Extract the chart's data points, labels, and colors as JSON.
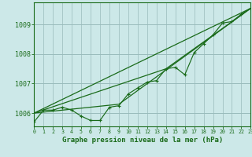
{
  "background_color": "#cce8e8",
  "plot_bg_color": "#cce8e8",
  "grid_color": "#99bbbb",
  "line_color": "#1a6b1a",
  "title": "Graphe pression niveau de la mer (hPa)",
  "ylabel_ticks": [
    1006,
    1007,
    1008,
    1009
  ],
  "xticks": [
    0,
    1,
    2,
    3,
    4,
    5,
    6,
    7,
    8,
    9,
    10,
    11,
    12,
    13,
    14,
    15,
    16,
    17,
    18,
    19,
    20,
    21,
    22,
    23
  ],
  "xlim": [
    0,
    23
  ],
  "ylim": [
    1005.55,
    1009.75
  ],
  "main_x": [
    0,
    1,
    2,
    3,
    4,
    5,
    6,
    7,
    8,
    9,
    10,
    11,
    12,
    13,
    14,
    15,
    16,
    17,
    18,
    19,
    20,
    21,
    22,
    23
  ],
  "main_y": [
    1005.7,
    1006.1,
    1006.1,
    1006.2,
    1006.1,
    1005.9,
    1005.75,
    1005.75,
    1006.2,
    1006.25,
    1006.65,
    1006.85,
    1007.05,
    1007.1,
    1007.5,
    1007.55,
    1007.3,
    1008.05,
    1008.35,
    1008.65,
    1009.05,
    1009.1,
    1009.35,
    1009.55
  ],
  "line1_x": [
    0,
    23
  ],
  "line1_y": [
    1006.0,
    1009.55
  ],
  "line2_x": [
    0,
    23
  ],
  "line2_y": [
    1006.0,
    1009.55
  ],
  "line3_x": [
    0,
    23
  ],
  "line3_y": [
    1006.0,
    1009.55
  ],
  "straight_lines": [
    {
      "x": [
        0,
        23
      ],
      "y": [
        1006.0,
        1009.55
      ]
    },
    {
      "x": [
        0,
        14,
        23
      ],
      "y": [
        1006.0,
        1007.5,
        1009.55
      ]
    },
    {
      "x": [
        0,
        9,
        23
      ],
      "y": [
        1006.0,
        1006.3,
        1009.55
      ]
    }
  ]
}
